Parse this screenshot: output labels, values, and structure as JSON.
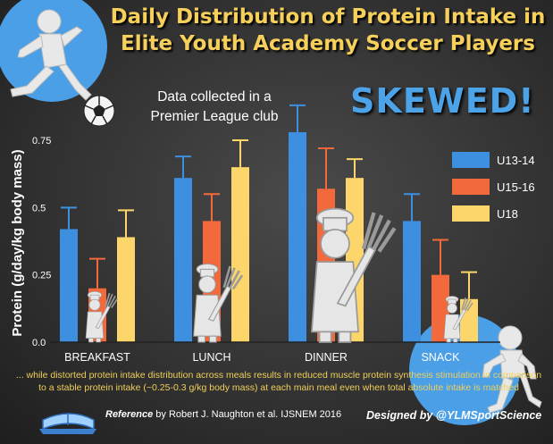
{
  "title_lines": [
    "Daily Distribution of Protein Intake in",
    "Elite Youth Academy Soccer Players"
  ],
  "subtitle_lines": [
    "Data collected in a",
    "Premier League club"
  ],
  "callout": "SKEWED!",
  "footnote_lines": [
    "... while distorted protein intake distribution across meals results in reduced muscle protein synthesis stimulation in comparison",
    "to a stable protein intake (~0.25-0.3 g/kg body mass) at each main meal even when total absolute intake is matched"
  ],
  "reference": {
    "label": "Reference",
    "text": "by Robert J. Naughton et al. IJSNEM 2016"
  },
  "credit": "Designed by @YLMSportScience",
  "colors": {
    "u13": "#3d8fe0",
    "u15": "#f26a3c",
    "u18": "#fcd66a",
    "error": "#f26a3c"
  },
  "icons": [
    "soccer-player-figure",
    "soccer-ball-icon",
    "chef-with-fork-figure",
    "book-icon",
    "crouching-figure"
  ],
  "chart_data": {
    "type": "bar",
    "title": "Daily Distribution of Protein Intake in Elite Youth Academy Soccer Players",
    "xlabel": "",
    "ylabel": "Protein (g/day/kg body mass)",
    "ylim": [
      0,
      0.75
    ],
    "yticks": [
      "0.0",
      "0.25",
      "0.5",
      "0.75"
    ],
    "grid": false,
    "legend_position": "right",
    "categories": [
      "BREAKFAST",
      "LUNCH",
      "DINNER",
      "SNACK"
    ],
    "series": [
      {
        "name": "U13-14",
        "values": [
          0.42,
          0.61,
          0.78,
          0.45
        ],
        "errors": [
          0.08,
          0.08,
          0.1,
          0.1
        ]
      },
      {
        "name": "U15-16",
        "values": [
          0.2,
          0.45,
          0.57,
          0.25
        ],
        "errors": [
          0.11,
          0.1,
          0.15,
          0.13
        ]
      },
      {
        "name": "U18",
        "values": [
          0.39,
          0.65,
          0.61,
          0.16
        ],
        "errors": [
          0.1,
          0.1,
          0.07,
          0.1
        ]
      }
    ]
  }
}
